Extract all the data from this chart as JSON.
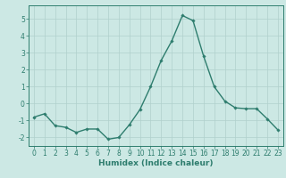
{
  "x": [
    0,
    1,
    2,
    3,
    4,
    5,
    6,
    7,
    8,
    9,
    10,
    11,
    12,
    13,
    14,
    15,
    16,
    17,
    18,
    19,
    20,
    21,
    22,
    23
  ],
  "y": [
    -0.8,
    -0.6,
    -1.3,
    -1.4,
    -1.7,
    -1.5,
    -1.5,
    -2.1,
    -2.0,
    -1.25,
    -0.35,
    1.0,
    2.55,
    3.7,
    5.2,
    4.9,
    2.8,
    1.0,
    0.15,
    -0.25,
    -0.3,
    -0.3,
    -0.9,
    -1.55
  ],
  "line_color": "#2e7d6e",
  "marker": "D",
  "marker_size": 1.8,
  "linewidth": 1.0,
  "xlabel": "Humidex (Indice chaleur)",
  "xlabel_fontsize": 6.5,
  "ylim": [
    -2.5,
    5.8
  ],
  "xlim": [
    -0.5,
    23.5
  ],
  "yticks": [
    -2,
    -1,
    0,
    1,
    2,
    3,
    4,
    5
  ],
  "xticks": [
    0,
    1,
    2,
    3,
    4,
    5,
    6,
    7,
    8,
    9,
    10,
    11,
    12,
    13,
    14,
    15,
    16,
    17,
    18,
    19,
    20,
    21,
    22,
    23
  ],
  "tick_fontsize": 5.5,
  "background_color": "#cce8e4",
  "grid_color": "#b0d0cc",
  "grid_linewidth": 0.5
}
